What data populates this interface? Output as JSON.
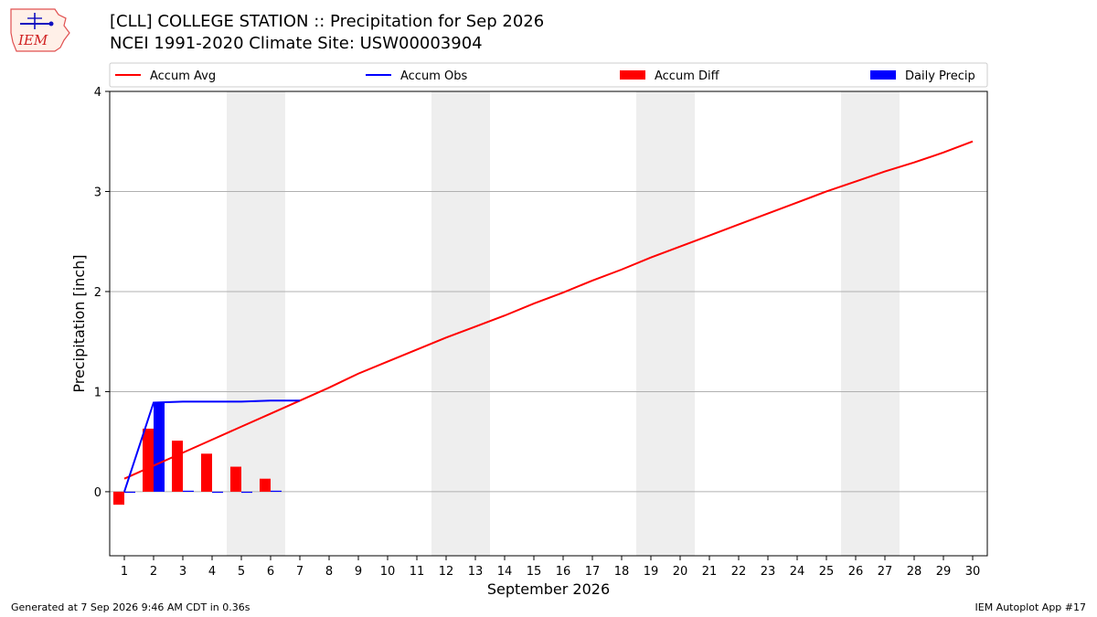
{
  "header": {
    "logo_text": "IEM",
    "title_line1": "[CLL] COLLEGE STATION :: Precipitation for Sep 2026",
    "title_line2": "NCEI 1991-2020 Climate Site: USW00003904"
  },
  "footer": {
    "generated": "Generated at 7 Sep 2026 9:46 AM CDT in 0.36s",
    "app": "IEM Autoplot App #17"
  },
  "colors": {
    "avg": "#ff0000",
    "obs": "#0000ff",
    "diff": "#ff0000",
    "daily": "#0000ff",
    "weekend_band": "#eeeeee",
    "grid": "#b0b0b0"
  },
  "chart_data": {
    "type": "line",
    "xlabel": "September 2026",
    "ylabel": "Precipitation [inch]",
    "xlim": [
      0.5,
      30.5
    ],
    "ylim": [
      -0.64,
      4.0
    ],
    "yticks": [
      0,
      1,
      2,
      3,
      4
    ],
    "x": [
      1,
      2,
      3,
      4,
      5,
      6,
      7,
      8,
      9,
      10,
      11,
      12,
      13,
      14,
      15,
      16,
      17,
      18,
      19,
      20,
      21,
      22,
      23,
      24,
      25,
      26,
      27,
      28,
      29,
      30
    ],
    "grid": "horizontal",
    "legend_position": "top",
    "legend": [
      "Accum Avg",
      "Accum Obs",
      "Accum Diff",
      "Daily Precip"
    ],
    "weekend_bands": [
      [
        4.5,
        6.5
      ],
      [
        11.5,
        13.5
      ],
      [
        18.5,
        20.5
      ],
      [
        25.5,
        27.5
      ]
    ],
    "series": [
      {
        "name": "Accum Avg",
        "kind": "line",
        "color": "#ff0000",
        "x": [
          1,
          2,
          3,
          4,
          5,
          6,
          7,
          8,
          9,
          10,
          11,
          12,
          13,
          14,
          15,
          16,
          17,
          18,
          19,
          20,
          21,
          22,
          23,
          24,
          25,
          26,
          27,
          28,
          29,
          30
        ],
        "values": [
          0.13,
          0.26,
          0.39,
          0.52,
          0.65,
          0.78,
          0.91,
          1.04,
          1.18,
          1.3,
          1.42,
          1.54,
          1.65,
          1.76,
          1.88,
          1.99,
          2.11,
          2.22,
          2.34,
          2.45,
          2.56,
          2.67,
          2.78,
          2.89,
          3.0,
          3.1,
          3.2,
          3.29,
          3.39,
          3.5
        ]
      },
      {
        "name": "Accum Obs",
        "kind": "line",
        "color": "#0000ff",
        "x": [
          1,
          2,
          3,
          4,
          5,
          6,
          7
        ],
        "values": [
          0.0,
          0.89,
          0.9,
          0.9,
          0.9,
          0.91,
          0.91
        ]
      },
      {
        "name": "Accum Diff",
        "kind": "bar",
        "color": "#ff0000",
        "x": [
          1,
          2,
          3,
          4,
          5,
          6
        ],
        "values": [
          -0.13,
          0.63,
          0.51,
          0.38,
          0.25,
          0.13
        ]
      },
      {
        "name": "Daily Precip",
        "kind": "bar",
        "color": "#0000ff",
        "x": [
          1,
          2,
          3,
          4,
          5,
          6
        ],
        "values": [
          0.0,
          0.89,
          0.01,
          0.0,
          0.0,
          0.01
        ]
      }
    ]
  }
}
